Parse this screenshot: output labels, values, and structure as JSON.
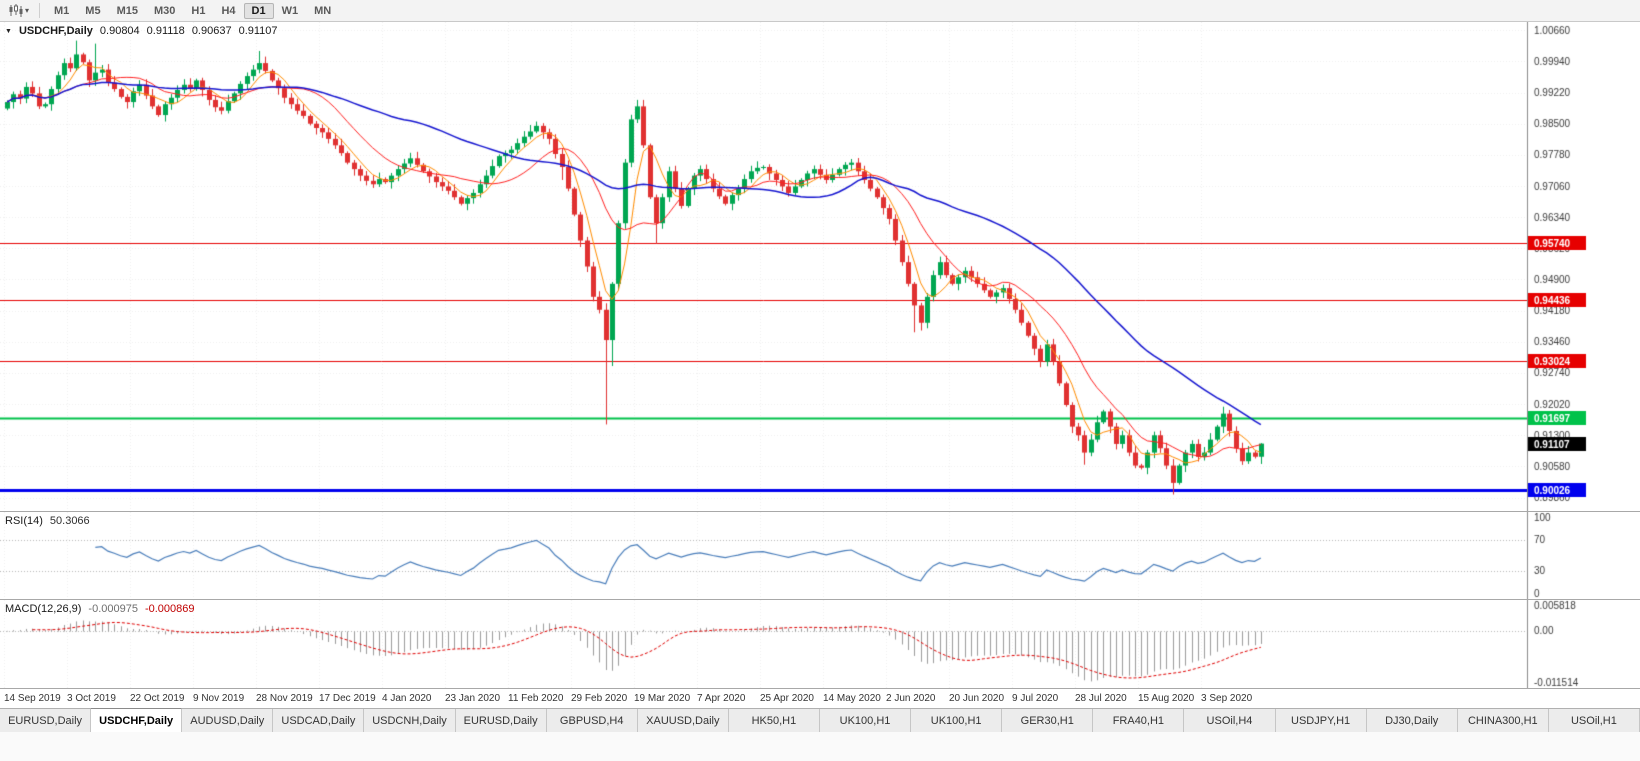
{
  "toolbar": {
    "timeframes": [
      "M1",
      "M5",
      "M15",
      "M30",
      "H1",
      "H4",
      "D1",
      "W1",
      "MN"
    ],
    "active_timeframe": "D1"
  },
  "price_panel": {
    "header": {
      "symbol": "USDCHF,Daily",
      "open": "0.90804",
      "high": "0.91118",
      "low": "0.90637",
      "close": "0.91107"
    },
    "axis_ticks": [
      "1.00660",
      "0.99940",
      "0.99220",
      "0.98500",
      "0.97780",
      "0.97060",
      "0.96340",
      "0.95620",
      "0.94900",
      "0.94180",
      "0.93460",
      "0.92740",
      "0.92020",
      "0.91300",
      "0.90580",
      "0.89860"
    ],
    "ylim": [
      0.8955,
      1.0085
    ],
    "lines": [
      {
        "price": 0.9574,
        "label": "0.95740",
        "color": "#e60000",
        "width": 1
      },
      {
        "price": 0.94436,
        "label": "0.94436",
        "color": "#e60000",
        "width": 1
      },
      {
        "price": 0.93024,
        "label": "0.93024",
        "color": "#e60000",
        "width": 1
      },
      {
        "price": 0.91697,
        "label": "0.91697",
        "color": "#00c24a",
        "width": 2
      },
      {
        "price": 0.90026,
        "label": "0.90026",
        "color": "#0000ee",
        "width": 3
      }
    ],
    "current_price": {
      "price": 0.91107,
      "label": "0.91107",
      "bg": "#000000"
    }
  },
  "rsi_panel": {
    "label": "RSI(14)",
    "value": "50.3066",
    "levels": [
      70,
      30
    ],
    "axis_ticks": [
      "100",
      "70",
      "30",
      "0"
    ],
    "ylim": [
      0,
      100
    ]
  },
  "macd_panel": {
    "label": "MACD(12,26,9)",
    "value_main": "-0.000975",
    "value_signal": "-0.000869",
    "axis_ticks": [
      "0.005818",
      "0.00",
      "-0.011514"
    ],
    "ylim": [
      -0.011514,
      0.005818
    ]
  },
  "date_axis": {
    "labels": [
      "14 Sep 2019",
      "3 Oct 2019",
      "22 Oct 2019",
      "9 Nov 2019",
      "28 Nov 2019",
      "17 Dec 2019",
      "4 Jan 2020",
      "23 Jan 2020",
      "11 Feb 2020",
      "29 Feb 2020",
      "19 Mar 2020",
      "7 Apr 2020",
      "25 Apr 2020",
      "14 May 2020",
      "2 Jun 2020",
      "20 Jun 2020",
      "9 Jul 2020",
      "28 Jul 2020",
      "15 Aug 2020",
      "3 Sep 2020"
    ]
  },
  "tabs": {
    "items": [
      "EURUSD,Daily",
      "USDCHF,Daily",
      "AUDUSD,Daily",
      "USDCAD,Daily",
      "USDCNH,Daily",
      "EURUSD,Daily",
      "GBPUSD,H4",
      "XAUUSD,Daily",
      "HK50,H1",
      "UK100,H1",
      "UK100,H1",
      "GER30,H1",
      "FRA40,H1",
      "USOil,H4",
      "USDJPY,H1",
      "DJ30,Daily",
      "CHINA300,H1",
      "USOil,H1"
    ],
    "active_index": 1
  },
  "colors": {
    "bull": "#00a651",
    "bear": "#e03131",
    "ma_fast": "#ff8c00",
    "ma_mid": "#ff2020",
    "ma_slow": "#1515d0",
    "rsi_line": "#4a7ebb",
    "macd_hist": "#9b9b9b",
    "macd_signal": "#e00000",
    "grid": "#efefef",
    "axis_border": "#8a8a8a",
    "level_dotted": "#b5b5b5",
    "tick_text": "#3c3c3c"
  },
  "chart_data": {
    "type": "candlestick",
    "symbol": "USDCHF",
    "timeframe": "Daily",
    "title": "USDCHF,Daily",
    "ylim": [
      0.8955,
      1.0085
    ],
    "first_open": 0.9885,
    "closes": [
      0.99,
      0.9918,
      0.9908,
      0.9935,
      0.992,
      0.989,
      0.9895,
      0.993,
      0.9962,
      0.999,
      0.9978,
      1.001,
      0.9992,
      0.995,
      0.9968,
      0.9975,
      0.9945,
      0.993,
      0.9912,
      0.99,
      0.9925,
      0.994,
      0.9915,
      0.989,
      0.987,
      0.9895,
      0.991,
      0.9928,
      0.994,
      0.993,
      0.995,
      0.9928,
      0.9905,
      0.9888,
      0.988,
      0.9902,
      0.992,
      0.9942,
      0.996,
      0.9975,
      0.999,
      0.9972,
      0.995,
      0.9932,
      0.991,
      0.9895,
      0.988,
      0.9868,
      0.985,
      0.984,
      0.983,
      0.9815,
      0.98,
      0.9782,
      0.976,
      0.9745,
      0.973,
      0.9718,
      0.971,
      0.9722,
      0.9715,
      0.973,
      0.9745,
      0.9758,
      0.977,
      0.9755,
      0.974,
      0.9728,
      0.9715,
      0.9705,
      0.9695,
      0.968,
      0.9665,
      0.9678,
      0.969,
      0.971,
      0.973,
      0.9752,
      0.9775,
      0.9782,
      0.979,
      0.9805,
      0.982,
      0.9832,
      0.9845,
      0.983,
      0.9815,
      0.978,
      0.975,
      0.97,
      0.964,
      0.958,
      0.952,
      0.945,
      0.942,
      0.935,
      0.948,
      0.962,
      0.976,
      0.986,
      0.989,
      0.98,
      0.968,
      0.962,
      0.968,
      0.974,
      0.97,
      0.966,
      0.97,
      0.973,
      0.9745,
      0.9722,
      0.97,
      0.9682,
      0.9665,
      0.9685,
      0.97,
      0.9722,
      0.974,
      0.9748,
      0.975,
      0.9735,
      0.972,
      0.9705,
      0.969,
      0.9705,
      0.972,
      0.9735,
      0.9745,
      0.9732,
      0.972,
      0.9732,
      0.9745,
      0.9755,
      0.976,
      0.974,
      0.972,
      0.97,
      0.968,
      0.9655,
      0.963,
      0.958,
      0.953,
      0.948,
      0.943,
      0.939,
      0.945,
      0.95,
      0.953,
      0.95,
      0.948,
      0.9495,
      0.951,
      0.9495,
      0.948,
      0.9465,
      0.945,
      0.946,
      0.947,
      0.9445,
      0.942,
      0.939,
      0.936,
      0.933,
      0.93,
      0.934,
      0.93,
      0.925,
      0.92,
      0.915,
      0.913,
      0.909,
      0.912,
      0.916,
      0.9185,
      0.915,
      0.911,
      0.913,
      0.909,
      0.906,
      0.9055,
      0.909,
      0.913,
      0.91,
      0.906,
      0.902,
      0.906,
      0.909,
      0.911,
      0.908,
      0.909,
      0.912,
      0.915,
      0.918,
      0.914,
      0.91,
      0.907,
      0.909,
      0.90804,
      0.91107
    ],
    "wick_overrides": {
      "11": {
        "h": 1.0042
      },
      "14": {
        "h": 1.0035
      },
      "40": {
        "h": 1.0018
      },
      "84": {
        "h": 0.9855
      },
      "88": {
        "l": 0.972
      },
      "95": {
        "l": 0.9155
      },
      "96": {
        "l": 0.929
      },
      "100": {
        "h": 0.9905
      },
      "103": {
        "l": 0.9572
      },
      "144": {
        "l": 0.9368
      },
      "145": {
        "l": 0.9372
      },
      "171": {
        "l": 0.9062
      },
      "185": {
        "l": 0.8993
      },
      "193": {
        "h": 0.9196
      },
      "199": {
        "h": 0.91118,
        "l": 0.90637
      }
    },
    "indicators": {
      "sma_fast": 5,
      "sma_mid": 13,
      "sma_slow": 40,
      "rsi_period": 14,
      "macd_params": [
        12,
        26,
        9
      ]
    }
  }
}
